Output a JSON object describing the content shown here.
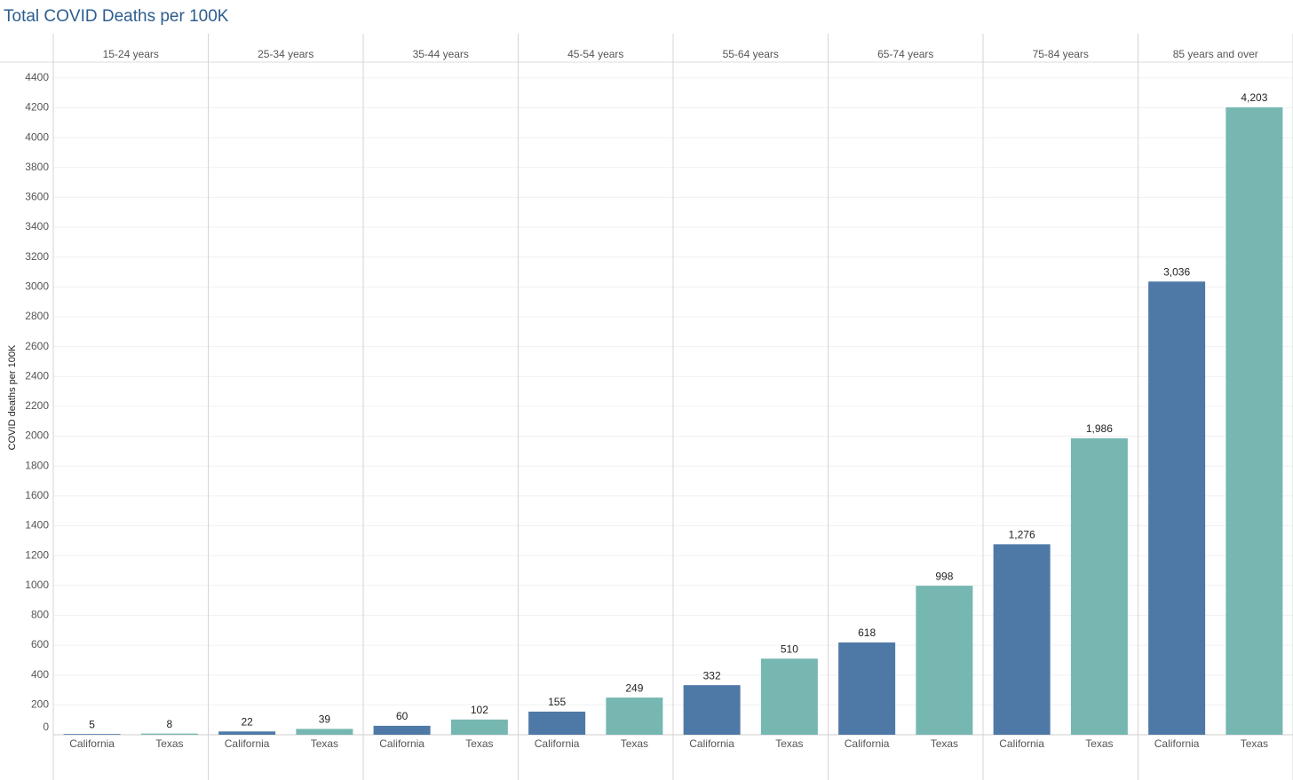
{
  "chart_data": {
    "type": "bar",
    "title": "Total COVID Deaths per 100K",
    "y_label": "COVID deaths per 100K",
    "categories": [
      "15-24 years",
      "25-34 years",
      "35-44 years",
      "45-54 years",
      "55-64 years",
      "65-74 years",
      "75-84 years",
      "85 years and over"
    ],
    "series": [
      {
        "name": "California",
        "color": "#4e79a7",
        "values": [
          5,
          22,
          60,
          155,
          332,
          618,
          1276,
          3036
        ],
        "value_labels": [
          "5",
          "22",
          "60",
          "155",
          "332",
          "618",
          "1,276",
          "3,036"
        ]
      },
      {
        "name": "Texas",
        "color": "#76b7b2",
        "values": [
          8,
          39,
          102,
          249,
          510,
          998,
          1986,
          4203
        ],
        "value_labels": [
          "8",
          "39",
          "102",
          "249",
          "510",
          "998",
          "1,986",
          "4,203"
        ]
      }
    ],
    "ylim": [
      0,
      4500
    ],
    "yticks": [
      0,
      200,
      400,
      600,
      800,
      1000,
      1200,
      1400,
      1600,
      1800,
      2000,
      2200,
      2400,
      2600,
      2800,
      3000,
      3200,
      3400,
      3600,
      3800,
      4000,
      4200,
      4400
    ],
    "grid": true
  }
}
